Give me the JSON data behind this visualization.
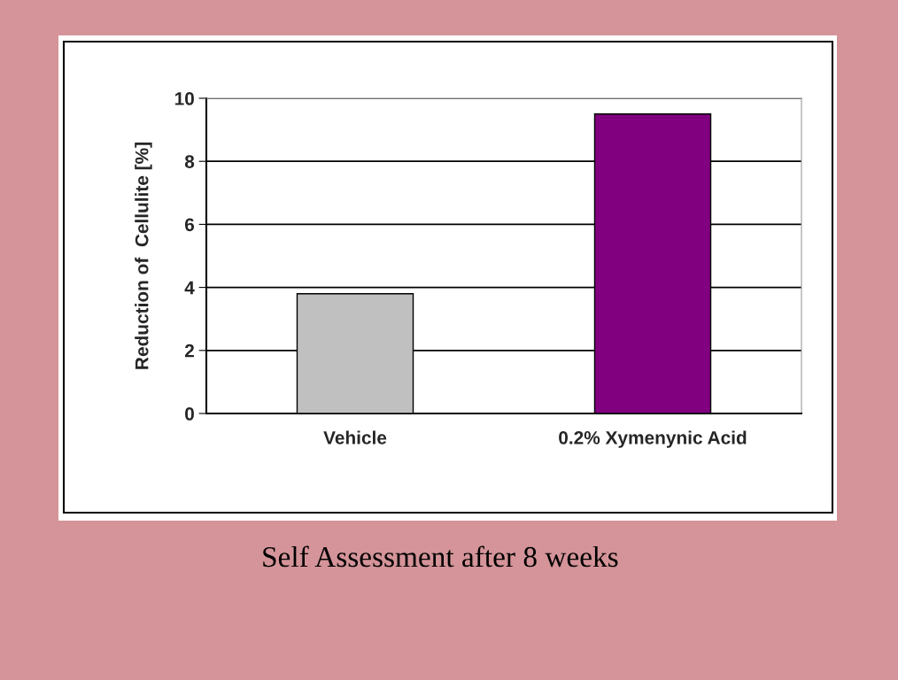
{
  "chart_data": {
    "type": "bar",
    "ylabel": "Reduction of  Cellulite [%]",
    "categories": [
      "Vehicle",
      "0.2% Xymenynic Acid"
    ],
    "series": [
      {
        "colors": [
          "#c0c0c0",
          "#800080"
        ],
        "values": [
          3.8,
          9.5
        ]
      }
    ],
    "ylim": [
      0,
      10
    ],
    "yticks": [
      0,
      2,
      4,
      6,
      8,
      10
    ],
    "grid": "y",
    "legend": false,
    "annotations": [
      "Self Assessment after 8 weeks"
    ]
  }
}
